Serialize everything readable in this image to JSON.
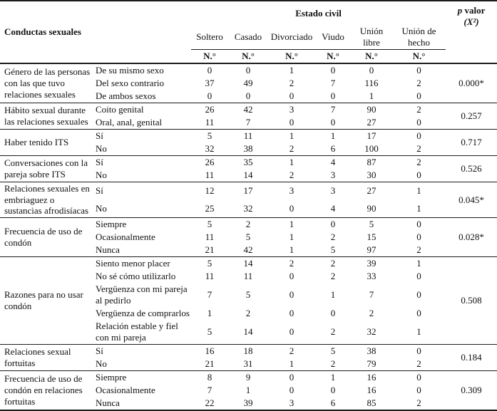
{
  "table": {
    "conductas_header": "Conductas sexuales",
    "estado_header": "Estado civil",
    "p_header": {
      "p": "p",
      "valor": " valor",
      "chi": "(X²)"
    },
    "count_label": "N.°",
    "columns": [
      "Soltero",
      "Casado",
      "Divorciado",
      "Viudo",
      "Unión libre",
      "Unión de hecho"
    ],
    "groups": [
      {
        "label": "Género de las personas con las que tuvo relaciones sexuales",
        "p": "0.000*",
        "rows": [
          {
            "label": "De su mismo sexo",
            "values": [
              "0",
              "0",
              "1",
              "0",
              "0",
              "0"
            ]
          },
          {
            "label": "Del sexo contrario",
            "values": [
              "37",
              "49",
              "2",
              "7",
              "116",
              "2"
            ]
          },
          {
            "label": "De ambos sexos",
            "values": [
              "0",
              "0",
              "0",
              "0",
              "1",
              "0"
            ]
          }
        ]
      },
      {
        "label": "Hábito sexual durante las relaciones sexuales",
        "p": "0.257",
        "rows": [
          {
            "label": "Coito genital",
            "values": [
              "26",
              "42",
              "3",
              "7",
              "90",
              "2"
            ]
          },
          {
            "label": "Oral, anal, genital",
            "values": [
              "11",
              "7",
              "0",
              "0",
              "27",
              "0"
            ]
          }
        ]
      },
      {
        "label": "Haber tenido ITS",
        "p": "0.717",
        "rows": [
          {
            "label": "Sí",
            "values": [
              "5",
              "11",
              "1",
              "1",
              "17",
              "0"
            ]
          },
          {
            "label": "No",
            "values": [
              "32",
              "38",
              "2",
              "6",
              "100",
              "2"
            ]
          }
        ]
      },
      {
        "label": "Conversaciones con la pareja sobre ITS",
        "p": "0.526",
        "rows": [
          {
            "label": "Sí",
            "values": [
              "26",
              "35",
              "1",
              "4",
              "87",
              "2"
            ]
          },
          {
            "label": "No",
            "values": [
              "11",
              "14",
              "2",
              "3",
              "30",
              "0"
            ]
          }
        ]
      },
      {
        "label": "Relaciones sexuales en embriaguez o sustancias afrodisíacas",
        "p": "0.045*",
        "rows": [
          {
            "label": "Sí",
            "values": [
              "12",
              "17",
              "3",
              "3",
              "27",
              "1"
            ]
          },
          {
            "label": "No",
            "values": [
              "25",
              "32",
              "0",
              "4",
              "90",
              "1"
            ]
          }
        ]
      },
      {
        "label": "Frecuencia de uso de condón",
        "p": "0.028*",
        "rows": [
          {
            "label": "Siempre",
            "values": [
              "5",
              "2",
              "1",
              "0",
              "5",
              "0"
            ]
          },
          {
            "label": "Ocasionalmente",
            "values": [
              "11",
              "5",
              "1",
              "2",
              "15",
              "0"
            ]
          },
          {
            "label": "Nunca",
            "values": [
              "21",
              "42",
              "1",
              "5",
              "97",
              "2"
            ]
          }
        ]
      },
      {
        "label": "Razones para no usar condón",
        "p": "0.508",
        "rows": [
          {
            "label": "Siento menor placer",
            "values": [
              "5",
              "14",
              "2",
              "2",
              "39",
              "1"
            ]
          },
          {
            "label": "No sé cómo utilizarlo",
            "values": [
              "11",
              "11",
              "0",
              "2",
              "33",
              "0"
            ]
          },
          {
            "label": "Vergüenza con mi pareja al pedirlo",
            "values": [
              "7",
              "5",
              "0",
              "1",
              "7",
              "0"
            ]
          },
          {
            "label": "Vergüenza de comprarlos",
            "values": [
              "1",
              "2",
              "0",
              "0",
              "2",
              "0"
            ]
          },
          {
            "label": "Relación estable y fiel con mi pareja",
            "values": [
              "5",
              "14",
              "0",
              "2",
              "32",
              "1"
            ]
          }
        ]
      },
      {
        "label": "Relaciones sexual fortuitas",
        "p": "0.184",
        "rows": [
          {
            "label": "Sí",
            "values": [
              "16",
              "18",
              "2",
              "5",
              "38",
              "0"
            ]
          },
          {
            "label": "No",
            "values": [
              "21",
              "31",
              "1",
              "2",
              "79",
              "2"
            ]
          }
        ]
      },
      {
        "label": "Frecuencia de uso de condón en relaciones fortuitas",
        "p": "0.309",
        "rows": [
          {
            "label": "Siempre",
            "values": [
              "8",
              "9",
              "0",
              "1",
              "16",
              "0"
            ]
          },
          {
            "label": "Ocasionalmente",
            "values": [
              "7",
              "1",
              "0",
              "0",
              "16",
              "0"
            ]
          },
          {
            "label": "Nunca",
            "values": [
              "22",
              "39",
              "3",
              "6",
              "85",
              "2"
            ]
          }
        ]
      }
    ]
  }
}
